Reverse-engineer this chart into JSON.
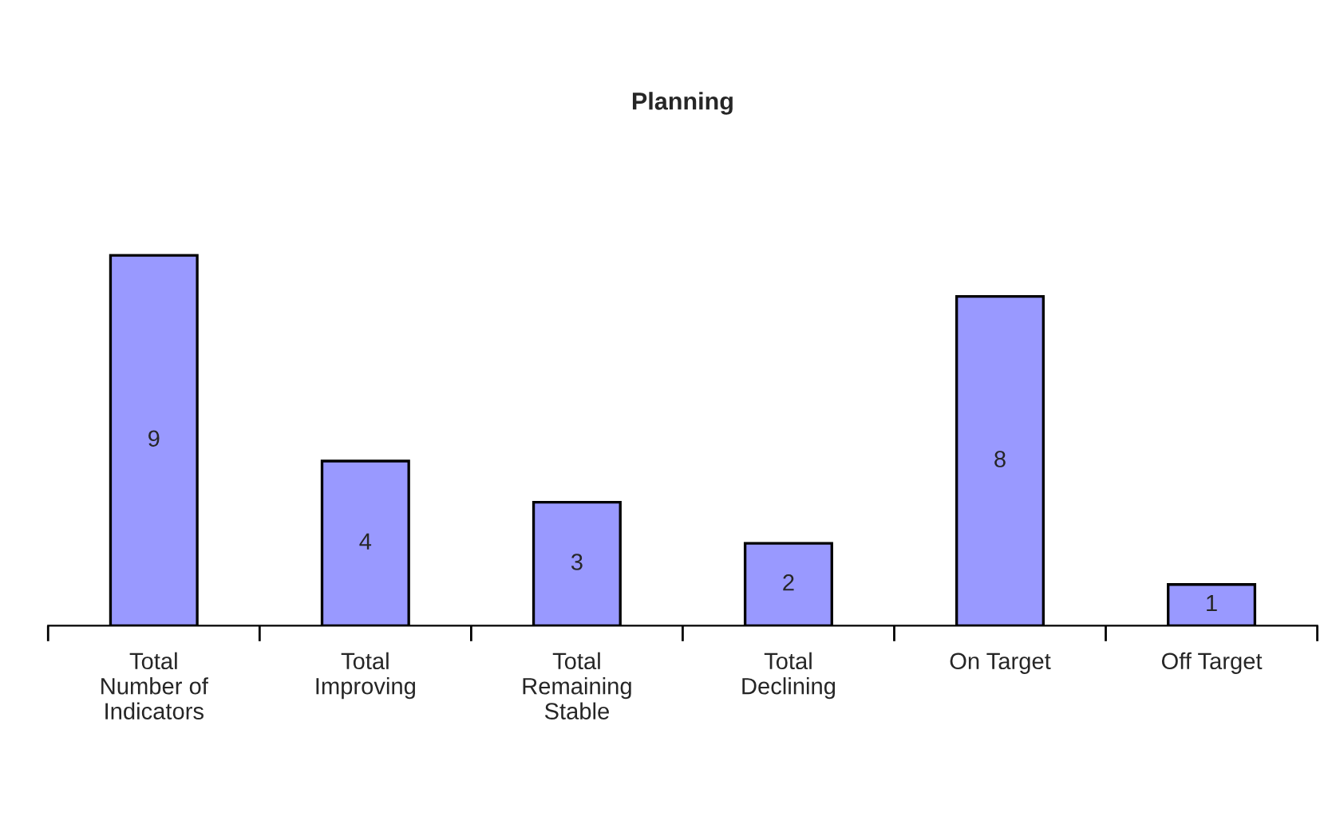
{
  "chart_data": {
    "type": "bar",
    "title": "Planning",
    "categories": [
      "Total Number of Indicators",
      "Total Improving",
      "Total Remaining Stable",
      "Total Declining",
      "On Target",
      "Off Target"
    ],
    "values": [
      9,
      4,
      3,
      2,
      8,
      1
    ],
    "color": "#9999ff",
    "data_labels": true,
    "grid": false,
    "legend": false
  }
}
